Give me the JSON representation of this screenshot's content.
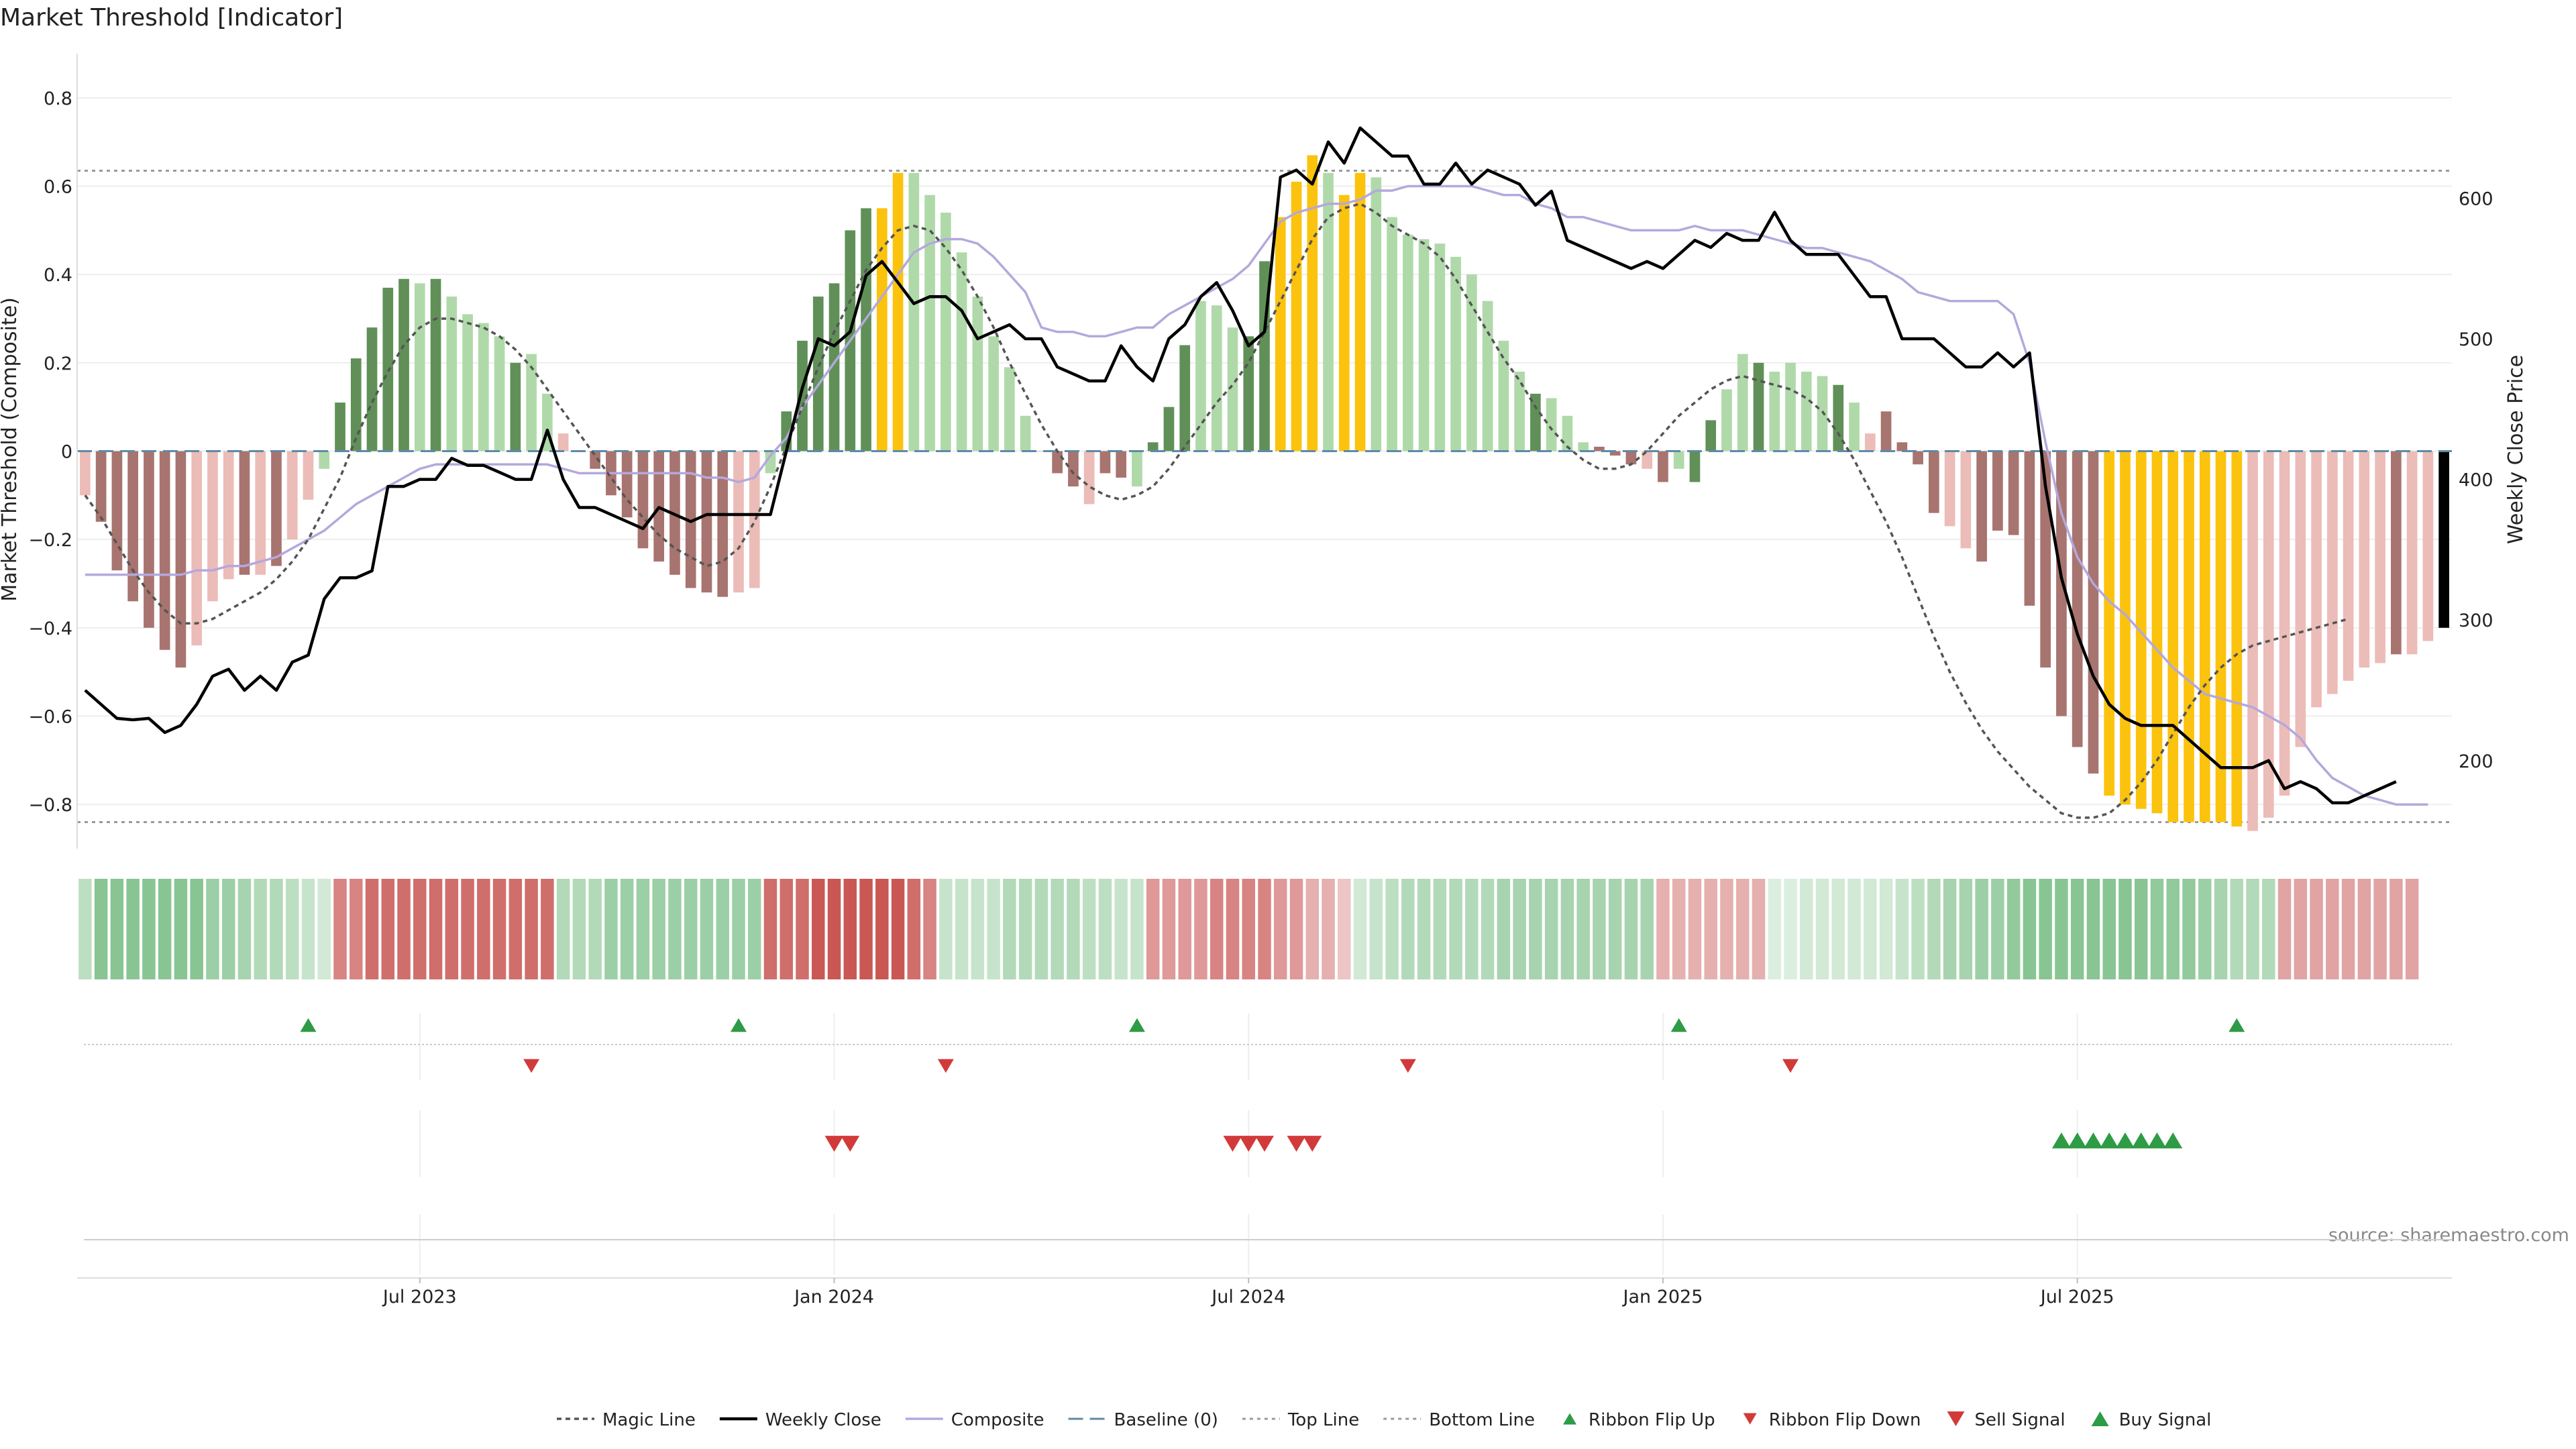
{
  "chart_data": {
    "type": "bar",
    "title": "Market Threshold [Indicator]",
    "ylabel": "Market Threshold (Composite)",
    "y2label": "Weekly Close Price",
    "source": "source: sharemaestro.com",
    "ylim": [
      -0.9,
      0.9
    ],
    "y2lim": [
      137.4,
      702.8
    ],
    "x_range": [
      0,
      143
    ],
    "yticks": [
      {
        "v": 0.8,
        "t": "0.8"
      },
      {
        "v": 0.6,
        "t": "0.6"
      },
      {
        "v": 0.4,
        "t": "0.4"
      },
      {
        "v": 0.2,
        "t": "0.2"
      },
      {
        "v": 0,
        "t": "0"
      },
      {
        "v": -0.2,
        "t": "−0.2"
      },
      {
        "v": -0.4,
        "t": "−0.4"
      },
      {
        "v": -0.6,
        "t": "−0.6"
      },
      {
        "v": -0.8,
        "t": "−0.8"
      }
    ],
    "y2ticks": [
      {
        "v": 600,
        "t": "600"
      },
      {
        "v": 500,
        "t": "500"
      },
      {
        "v": 400,
        "t": "400"
      },
      {
        "v": 300,
        "t": "300"
      },
      {
        "v": 200,
        "t": "200"
      }
    ],
    "xticks": [
      {
        "i": 21,
        "t": "Jul 2023"
      },
      {
        "i": 47,
        "t": "Jan 2024"
      },
      {
        "i": 73,
        "t": "Jul 2024"
      },
      {
        "i": 99,
        "t": "Jan 2025"
      },
      {
        "i": 125,
        "t": "Jul 2025"
      }
    ],
    "top_line": 0.635,
    "bottom_line": -0.84,
    "baseline": 0,
    "composite": [
      -0.1,
      -0.16,
      -0.27,
      -0.34,
      -0.4,
      -0.45,
      -0.49,
      -0.44,
      -0.34,
      -0.29,
      -0.28,
      -0.28,
      -0.26,
      -0.2,
      -0.11,
      -0.04,
      0.11,
      0.21,
      0.28,
      0.37,
      0.39,
      0.38,
      0.39,
      0.35,
      0.31,
      0.29,
      0.26,
      0.2,
      0.22,
      0.13,
      0.04,
      0,
      -0.04,
      -0.1,
      -0.15,
      -0.22,
      -0.25,
      -0.28,
      -0.31,
      -0.32,
      -0.33,
      -0.32,
      -0.31,
      -0.05,
      0.09,
      0.25,
      0.35,
      0.38,
      0.5,
      0.55,
      0.55,
      0.63,
      0.63,
      0.58,
      0.54,
      0.45,
      0.35,
      0.26,
      0.19,
      0.08,
      0,
      -0.05,
      -0.08,
      -0.12,
      -0.05,
      -0.06,
      -0.08,
      0.02,
      0.1,
      0.24,
      0.34,
      0.33,
      0.28,
      0.26,
      0.43,
      0.53,
      0.61,
      0.67,
      0.63,
      0.58,
      0.63,
      0.62,
      0.53,
      0.49,
      0.48,
      0.47,
      0.44,
      0.4,
      0.34,
      0.25,
      0.18,
      0.13,
      0.12,
      0.08,
      0.02,
      0.01,
      -0.01,
      -0.03,
      -0.04,
      -0.07,
      -0.04,
      -0.07,
      0.07,
      0.14,
      0.22,
      0.2,
      0.18,
      0.2,
      0.18,
      0.17,
      0.15,
      0.11,
      0.04,
      0.09,
      0.02,
      -0.03,
      -0.14,
      -0.17,
      -0.22,
      -0.25,
      -0.18,
      -0.19,
      -0.35,
      -0.49,
      -0.6,
      -0.67,
      -0.73,
      -0.78,
      -0.8,
      -0.81,
      -0.82,
      -0.84,
      -0.84,
      -0.84,
      -0.84,
      -0.85,
      -0.86,
      -0.83,
      -0.78,
      -0.67,
      -0.58,
      -0.55,
      -0.52,
      -0.49,
      -0.48,
      -0.46,
      -0.46,
      -0.43,
      -0.4
    ],
    "bar_colors": [
      "#ecbcb8",
      "#a87470",
      "#a87470",
      "#a87470",
      "#a87470",
      "#a87470",
      "#a87470",
      "#ecbcb8",
      "#ecbcb8",
      "#ecbcb8",
      "#a87470",
      "#ecbcb8",
      "#a87470",
      "#ecbcb8",
      "#ecbcb8",
      "#b0d9aa",
      "#609058",
      "#609058",
      "#609058",
      "#609058",
      "#609058",
      "#b0d9aa",
      "#609058",
      "#b0d9aa",
      "#b0d9aa",
      "#b0d9aa",
      "#b0d9aa",
      "#609058",
      "#b0d9aa",
      "#b0d9aa",
      "#ecbcb8",
      "#ecbcb8",
      "#a87470",
      "#a87470",
      "#a87470",
      "#a87470",
      "#a87470",
      "#a87470",
      "#a87470",
      "#a87470",
      "#a87470",
      "#ecbcb8",
      "#ecbcb8",
      "#b0d9aa",
      "#609058",
      "#609058",
      "#609058",
      "#609058",
      "#609058",
      "#609058",
      "#fbc30d",
      "#fbc30d",
      "#b0d9aa",
      "#b0d9aa",
      "#b0d9aa",
      "#b0d9aa",
      "#b0d9aa",
      "#b0d9aa",
      "#b0d9aa",
      "#b0d9aa",
      "#ecbcb8",
      "#a87470",
      "#a87470",
      "#ecbcb8",
      "#a87470",
      "#a87470",
      "#b0d9aa",
      "#609058",
      "#609058",
      "#609058",
      "#b0d9aa",
      "#b0d9aa",
      "#b0d9aa",
      "#609058",
      "#609058",
      "#fbc30d",
      "#fbc30d",
      "#fbc30d",
      "#b0d9aa",
      "#fbc30d",
      "#fbc30d",
      "#b0d9aa",
      "#b0d9aa",
      "#b0d9aa",
      "#b0d9aa",
      "#b0d9aa",
      "#b0d9aa",
      "#b0d9aa",
      "#b0d9aa",
      "#b0d9aa",
      "#b0d9aa",
      "#609058",
      "#b0d9aa",
      "#b0d9aa",
      "#b0d9aa",
      "#a87470",
      "#a87470",
      "#a87470",
      "#ecbcb8",
      "#a87470",
      "#b0d9aa",
      "#609058",
      "#609058",
      "#b0d9aa",
      "#b0d9aa",
      "#609058",
      "#b0d9aa",
      "#b0d9aa",
      "#b0d9aa",
      "#b0d9aa",
      "#609058",
      "#b0d9aa",
      "#ecbcb8",
      "#a87470",
      "#a87470",
      "#a87470",
      "#a87470",
      "#ecbcb8",
      "#ecbcb8",
      "#a87470",
      "#a87470",
      "#a87470",
      "#a87470",
      "#a87470",
      "#a87470",
      "#a87470",
      "#a87470",
      "#fbc30d",
      "#fbc30d",
      "#fbc30d",
      "#fbc30d",
      "#fbc30d",
      "#fbc30d",
      "#fbc30d",
      "#fbc30d",
      "#fbc30d",
      "#ecbcb8",
      "#ecbcb8",
      "#ecbcb8",
      "#ecbcb8",
      "#ecbcb8",
      "#ecbcb8",
      "#ecbcb8",
      "#ecbcb8",
      "#ecbcb8",
      "#a87470",
      "#ecbcb8",
      "#ecbcb8"
    ],
    "magic_line": [
      -0.1,
      -0.15,
      -0.21,
      -0.27,
      -0.32,
      -0.36,
      -0.39,
      -0.39,
      -0.38,
      -0.36,
      -0.34,
      -0.32,
      -0.29,
      -0.25,
      -0.2,
      -0.13,
      -0.06,
      0.03,
      0.11,
      0.18,
      0.24,
      0.28,
      0.3,
      0.3,
      0.29,
      0.28,
      0.26,
      0.23,
      0.19,
      0.14,
      0.09,
      0.04,
      -0.01,
      -0.06,
      -0.11,
      -0.15,
      -0.19,
      -0.22,
      -0.24,
      -0.26,
      -0.25,
      -0.22,
      -0.16,
      -0.08,
      0.01,
      0.1,
      0.19,
      0.27,
      0.34,
      0.41,
      0.46,
      0.5,
      0.51,
      0.5,
      0.46,
      0.41,
      0.35,
      0.28,
      0.2,
      0.13,
      0.06,
      0,
      -0.05,
      -0.08,
      -0.1,
      -0.11,
      -0.1,
      -0.08,
      -0.04,
      0.01,
      0.06,
      0.11,
      0.15,
      0.2,
      0.27,
      0.34,
      0.41,
      0.48,
      0.53,
      0.55,
      0.56,
      0.54,
      0.51,
      0.49,
      0.47,
      0.44,
      0.39,
      0.33,
      0.27,
      0.21,
      0.16,
      0.1,
      0.05,
      0.01,
      -0.02,
      -0.04,
      -0.04,
      -0.03,
      0,
      0.04,
      0.08,
      0.11,
      0.14,
      0.16,
      0.17,
      0.16,
      0.15,
      0.14,
      0.12,
      0.09,
      0.04,
      -0.02,
      -0.09,
      -0.16,
      -0.24,
      -0.33,
      -0.42,
      -0.5,
      -0.57,
      -0.63,
      -0.68,
      -0.72,
      -0.76,
      -0.79,
      -0.82,
      -0.83,
      -0.83,
      -0.82,
      -0.79,
      -0.75,
      -0.7,
      -0.64,
      -0.58,
      -0.53,
      -0.49,
      -0.46,
      -0.44,
      -0.43,
      -0.42,
      -0.41,
      -0.4,
      -0.39,
      -0.38
    ],
    "composite_line": [
      -0.28,
      -0.28,
      -0.28,
      -0.28,
      -0.28,
      -0.28,
      -0.28,
      -0.27,
      -0.27,
      -0.26,
      -0.26,
      -0.25,
      -0.24,
      -0.22,
      -0.2,
      -0.18,
      -0.15,
      -0.12,
      -0.1,
      -0.08,
      -0.06,
      -0.04,
      -0.03,
      -0.03,
      -0.03,
      -0.03,
      -0.03,
      -0.03,
      -0.03,
      -0.03,
      -0.04,
      -0.05,
      -0.05,
      -0.05,
      -0.05,
      -0.05,
      -0.05,
      -0.05,
      -0.05,
      -0.06,
      -0.06,
      -0.07,
      -0.06,
      -0.01,
      0.03,
      0.1,
      0.15,
      0.2,
      0.25,
      0.3,
      0.35,
      0.4,
      0.45,
      0.47,
      0.48,
      0.48,
      0.47,
      0.44,
      0.4,
      0.36,
      0.28,
      0.27,
      0.27,
      0.26,
      0.26,
      0.27,
      0.28,
      0.28,
      0.31,
      0.33,
      0.35,
      0.37,
      0.39,
      0.42,
      0.47,
      0.52,
      0.54,
      0.55,
      0.56,
      0.56,
      0.57,
      0.59,
      0.59,
      0.6,
      0.6,
      0.6,
      0.6,
      0.6,
      0.59,
      0.58,
      0.58,
      0.56,
      0.55,
      0.53,
      0.53,
      0.52,
      0.51,
      0.5,
      0.5,
      0.5,
      0.5,
      0.51,
      0.5,
      0.5,
      0.5,
      0.49,
      0.48,
      0.47,
      0.46,
      0.46,
      0.45,
      0.44,
      0.43,
      0.41,
      0.39,
      0.36,
      0.35,
      0.34,
      0.34,
      0.34,
      0.34,
      0.31,
      0.2,
      0.02,
      -0.14,
      -0.24,
      -0.3,
      -0.34,
      -0.37,
      -0.41,
      -0.45,
      -0.49,
      -0.52,
      -0.55,
      -0.56,
      -0.57,
      -0.58,
      -0.6,
      -0.62,
      -0.65,
      -0.7,
      -0.74,
      -0.76,
      -0.78,
      -0.79,
      -0.8,
      -0.8,
      -0.8
    ],
    "weekly_close": [
      250,
      240,
      230,
      229,
      230,
      220,
      225,
      240,
      260,
      265,
      250,
      260,
      250,
      270,
      275,
      315,
      330,
      330,
      335,
      395,
      395,
      400,
      400,
      415,
      410,
      410,
      405,
      400,
      400,
      435,
      400,
      380,
      380,
      375,
      370,
      365,
      380,
      375,
      370,
      375,
      375,
      375,
      375,
      375,
      420,
      465,
      500,
      495,
      505,
      545,
      555,
      540,
      525,
      530,
      530,
      520,
      500,
      505,
      510,
      500,
      500,
      480,
      475,
      470,
      470,
      495,
      480,
      470,
      500,
      510,
      530,
      540,
      520,
      495,
      505,
      615,
      620,
      610,
      640,
      625,
      650,
      640,
      630,
      630,
      610,
      610,
      625,
      610,
      620,
      615,
      610,
      595,
      605,
      570,
      565,
      560,
      555,
      550,
      555,
      550,
      560,
      570,
      565,
      575,
      570,
      570,
      590,
      570,
      560,
      560,
      560,
      545,
      530,
      530,
      500,
      500,
      500,
      490,
      480,
      480,
      490,
      480,
      490,
      395,
      330,
      290,
      260,
      240,
      230,
      225,
      225,
      225,
      215,
      205,
      195,
      195,
      195,
      200,
      180,
      185,
      180,
      170,
      170,
      175,
      180,
      185
    ],
    "ribbon": [
      0.25,
      0.5,
      0.5,
      0.5,
      0.5,
      0.5,
      0.5,
      0.5,
      0.4,
      0.4,
      0.35,
      0.3,
      0.3,
      0.25,
      0.2,
      0.15,
      -0.5,
      -0.5,
      -0.6,
      -0.6,
      -0.6,
      -0.6,
      -0.6,
      -0.6,
      -0.6,
      -0.6,
      -0.6,
      -0.6,
      -0.6,
      -0.6,
      0.3,
      0.3,
      0.3,
      0.4,
      0.4,
      0.4,
      0.4,
      0.4,
      0.4,
      0.4,
      0.4,
      0.4,
      0.4,
      -0.6,
      -0.6,
      -0.6,
      -0.7,
      -0.7,
      -0.7,
      -0.7,
      -0.7,
      -0.7,
      -0.6,
      -0.5,
      0.2,
      0.2,
      0.2,
      0.2,
      0.3,
      0.3,
      0.3,
      0.3,
      0.3,
      0.25,
      0.25,
      0.2,
      0.2,
      -0.4,
      -0.4,
      -0.4,
      -0.4,
      -0.5,
      -0.5,
      -0.5,
      -0.5,
      -0.4,
      -0.4,
      -0.3,
      -0.3,
      -0.2,
      0.15,
      0.2,
      0.25,
      0.3,
      0.3,
      0.3,
      0.3,
      0.3,
      0.3,
      0.35,
      0.35,
      0.35,
      0.35,
      0.35,
      0.35,
      0.35,
      0.35,
      0.35,
      0.35,
      -0.3,
      -0.3,
      -0.3,
      -0.3,
      -0.3,
      -0.3,
      -0.3,
      0.1,
      0.1,
      0.15,
      0.15,
      0.15,
      0.15,
      0.15,
      0.15,
      0.2,
      0.25,
      0.3,
      0.35,
      0.35,
      0.4,
      0.4,
      0.45,
      0.5,
      0.5,
      0.5,
      0.5,
      0.5,
      0.5,
      0.5,
      0.5,
      0.45,
      0.45,
      0.45,
      0.4,
      0.35,
      0.3,
      0.3,
      0.3,
      -0.35,
      -0.35,
      -0.35,
      -0.35,
      -0.35,
      -0.35,
      -0.35,
      -0.35,
      -0.35
    ],
    "ribbon_flip_up": [
      14,
      41,
      66,
      100,
      135
    ],
    "ribbon_flip_down": [
      28,
      54,
      83,
      107
    ],
    "sell_signal": [
      47,
      48,
      72,
      73,
      74,
      76,
      77
    ],
    "buy_signal": [
      124,
      125,
      126,
      127,
      128,
      129,
      130,
      131
    ],
    "legend": [
      "Magic Line",
      "Weekly Close",
      "Composite",
      "Baseline (0)",
      "Top Line",
      "Bottom Line",
      "Ribbon Flip Up",
      "Ribbon Flip Down",
      "Sell Signal",
      "Buy Signal"
    ],
    "legend_position": "bottom-center"
  },
  "colors": {
    "strong_up": "#609058",
    "weak_up": "#b0d9aa",
    "strong_down": "#a87470",
    "weak_down": "#ecbcb8",
    "extreme": "#fbc30d",
    "weekly_close": "#000000",
    "composite_line": "#b4a8dc",
    "magic_line": "#555555",
    "baseline": "#5e8aa8",
    "threshold_line": "#9a9a9a",
    "buy": "#2e9b45",
    "sell": "#d23a3a",
    "ribbon_green": "#4faa5e",
    "ribbon_red": "#c44a47"
  }
}
